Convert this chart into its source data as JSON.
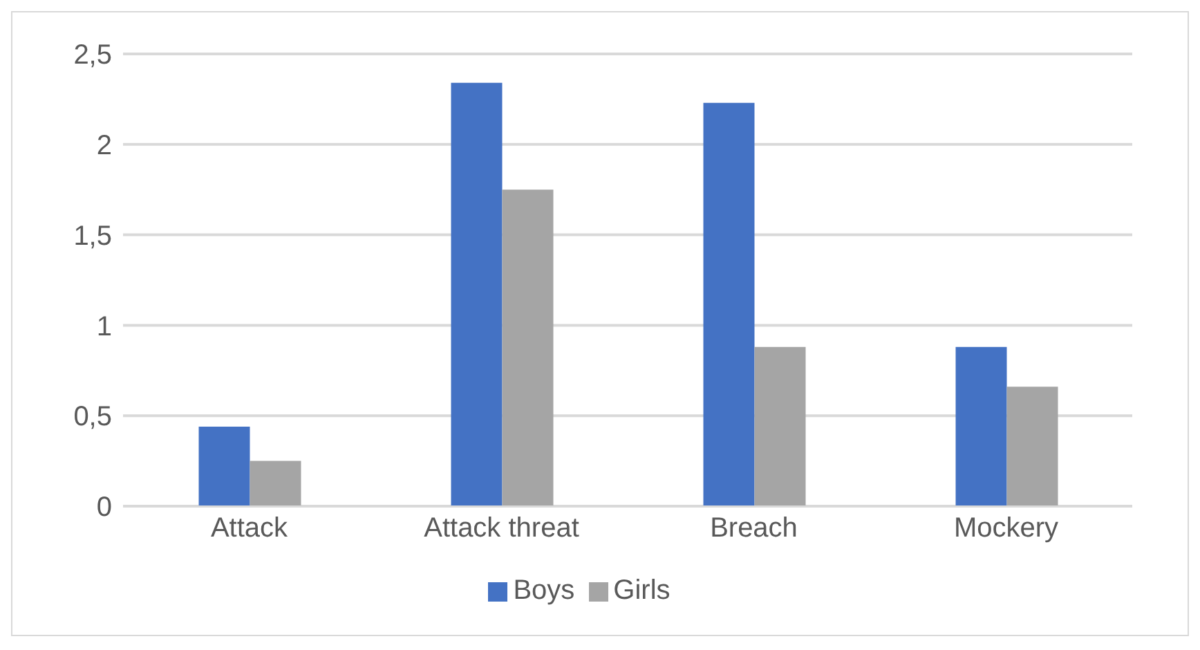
{
  "chart_data": {
    "type": "bar",
    "categories": [
      "Attack",
      "Attack threat",
      "Breach",
      "Mockery"
    ],
    "series": [
      {
        "name": "Boys",
        "color": "#4472c4",
        "values": [
          0.44,
          2.34,
          2.23,
          0.88
        ]
      },
      {
        "name": "Girls",
        "color": "#a5a5a5",
        "values": [
          0.25,
          1.75,
          0.88,
          0.66
        ]
      }
    ],
    "ylim": [
      0,
      2.5
    ],
    "yticks": [
      {
        "value": 0,
        "label": "0"
      },
      {
        "value": 0.5,
        "label": "0,5"
      },
      {
        "value": 1,
        "label": "1"
      },
      {
        "value": 1.5,
        "label": "1,5"
      },
      {
        "value": 2,
        "label": "2"
      },
      {
        "value": 2.5,
        "label": "2,5"
      }
    ],
    "grid": "y",
    "legend": "bottom"
  }
}
